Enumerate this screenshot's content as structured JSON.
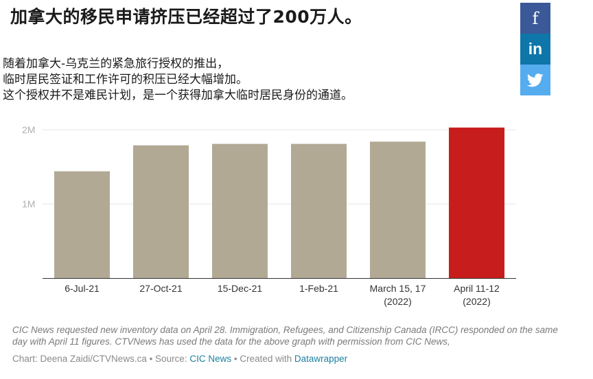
{
  "title": "加拿大的移民申请挤压已经超过了200万人。",
  "subtitle_lines": [
    "随着加拿大-乌克兰的紧急旅行授权的推出，",
    "临时居民签证和工作许可的积压已经大幅增加。",
    "这个授权并不是难民计划，是一个获得加拿大临时居民身份的通道。"
  ],
  "share": {
    "facebook_label": "f",
    "linkedin_label": "in",
    "twitter_icon": "twitter-bird-icon"
  },
  "chart_data": {
    "type": "bar",
    "categories": [
      "6-Jul-21",
      "27-Oct-21",
      "15-Dec-21",
      "1-Feb-21",
      "March 15, 17 (2022)",
      "April 11-12 (2022)"
    ],
    "category_lines": [
      [
        "6-Jul-21"
      ],
      [
        "27-Oct-21"
      ],
      [
        "15-Dec-21"
      ],
      [
        "1-Feb-21"
      ],
      [
        "March 15, 17",
        "(2022)"
      ],
      [
        "April 11-12",
        "(2022)"
      ]
    ],
    "values": [
      1440000,
      1790000,
      1810000,
      1810000,
      1840000,
      2030000
    ],
    "ylim": [
      0,
      2000000
    ],
    "yticks": [
      {
        "value": 1000000,
        "label": "1M"
      },
      {
        "value": 2000000,
        "label": "2M"
      }
    ],
    "colors": [
      "#b2a995",
      "#b2a995",
      "#b2a995",
      "#b2a995",
      "#b2a995",
      "#c71e1d"
    ],
    "grid": true
  },
  "notes": "CIC News requested new inventory data on April 28. Immigration, Refugees, and Citizenship Canada (IRCC) responded on the same day with April 11 figures. CTVNews has used the data for the above graph with permission from CIC News,",
  "footer": {
    "prefix": "Chart: Deena Zaidi/CTVNews.ca • Source: ",
    "source_link": "CIC News",
    "mid": " • Created with ",
    "tool_link": "Datawrapper"
  }
}
